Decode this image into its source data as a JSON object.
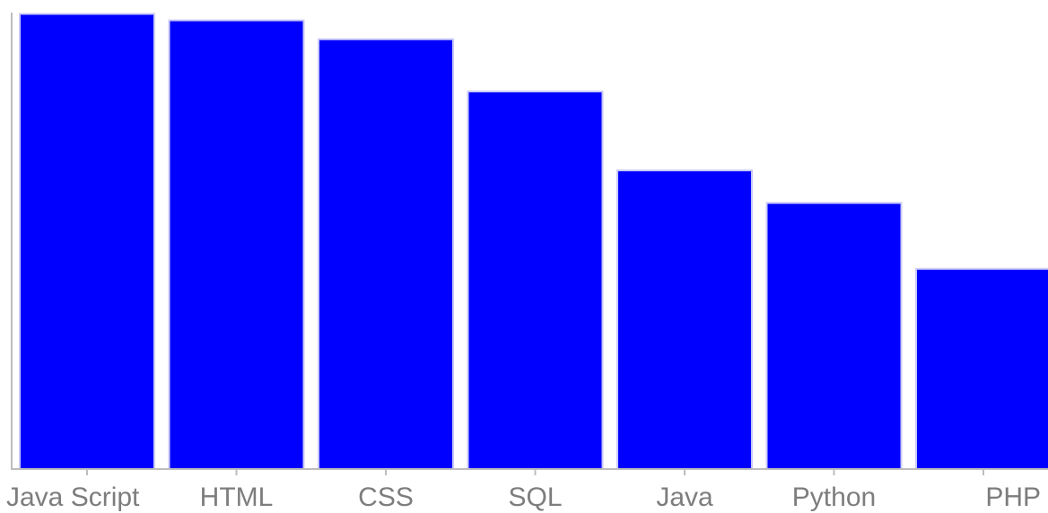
{
  "chart_data": {
    "type": "bar",
    "categories": [
      "Java Script",
      "HTML",
      "CSS",
      "SQL",
      "Java",
      "Python",
      "PHP"
    ],
    "values": [
      69.8,
      68.8,
      65.9,
      57.9,
      45.8,
      40.8,
      30.7
    ],
    "title": "",
    "xlabel": "",
    "ylabel": "",
    "ylim": [
      0,
      70
    ],
    "grid": false,
    "legend": "none",
    "colors": {
      "bar": "#0000ff",
      "bar_outline": "#c8c8f8",
      "axis": "#bdbdbd",
      "tick_label": "#7d7d7d"
    }
  }
}
